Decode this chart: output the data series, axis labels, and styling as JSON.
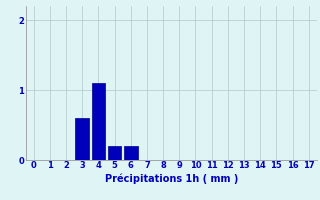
{
  "categories": [
    0,
    1,
    2,
    3,
    4,
    5,
    6,
    7,
    8,
    9,
    10,
    11,
    12,
    13,
    14,
    15,
    16,
    17
  ],
  "values": [
    0,
    0,
    0,
    0.6,
    1.1,
    0.2,
    0.2,
    0,
    0,
    0,
    0,
    0,
    0,
    0,
    0,
    0,
    0,
    0
  ],
  "bar_color": "#0000bb",
  "bar_edge_color": "#000088",
  "background_color": "#dff4f4",
  "grid_color": "#b0c8c8",
  "xlabel": "Précipitations 1h ( mm )",
  "xlabel_color": "#0000bb",
  "tick_color": "#0000bb",
  "ylim": [
    0,
    2.2
  ],
  "yticks": [
    0,
    1,
    2
  ],
  "xlim": [
    -0.5,
    17.5
  ],
  "bar_width": 0.85,
  "tick_fontsize": 6,
  "xlabel_fontsize": 7
}
